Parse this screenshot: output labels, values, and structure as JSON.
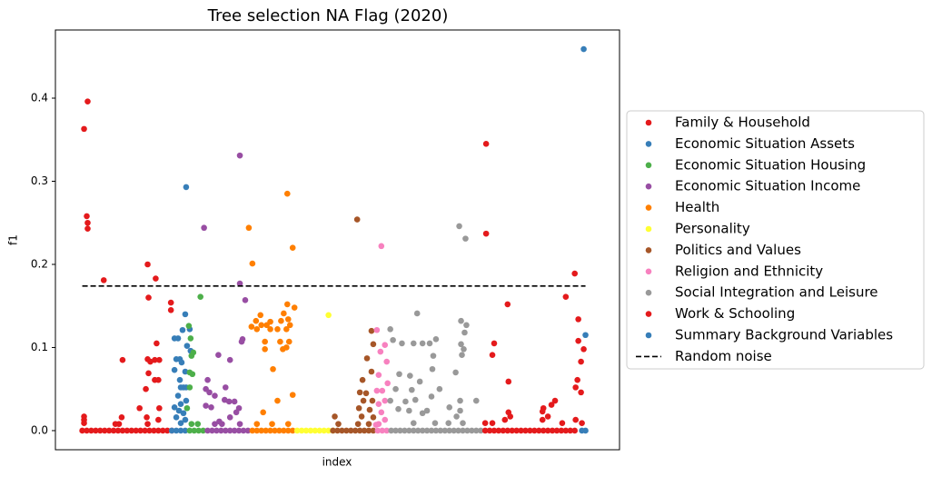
{
  "chart_data": {
    "type": "scatter",
    "title": "Tree selection NA Flag (2020)",
    "x_label": "index",
    "y_label": "f1",
    "xlim": [
      -30,
      600
    ],
    "ylim": [
      -0.023,
      0.482
    ],
    "yticks": [
      {
        "value": 0,
        "label": "0.0"
      },
      0.1,
      0.2,
      0.3,
      0.4
    ],
    "legend": "right",
    "noise": {
      "name": "Random noise",
      "value": 0.174,
      "color": "#000000"
    },
    "series": [
      {
        "name": "Family & Household",
        "color": "#e41a1c",
        "x": [
          2,
          6,
          5,
          6,
          6,
          24,
          73,
          82,
          99,
          99,
          74,
          83,
          45,
          73,
          76,
          81,
          86,
          74,
          81,
          85,
          71,
          64,
          86,
          2,
          2,
          2,
          37,
          44,
          41,
          72,
          73,
          85,
          0,
          5,
          10,
          15,
          20,
          25,
          30,
          35,
          40,
          45,
          50,
          55,
          60,
          65,
          70,
          75,
          80,
          85,
          90,
          95,
          100
        ],
        "values": [
          0.363,
          0.396,
          0.258,
          0.25,
          0.243,
          0.181,
          0.2,
          0.183,
          0.154,
          0.145,
          0.16,
          0.105,
          0.085,
          0.086,
          0.083,
          0.085,
          0.085,
          0.069,
          0.061,
          0.061,
          0.05,
          0.027,
          0.027,
          0.017,
          0.013,
          0.009,
          0.008,
          0.016,
          0.008,
          0.016,
          0.008,
          0.013,
          0,
          0,
          0,
          0,
          0,
          0,
          0,
          0,
          0,
          0,
          0,
          0,
          0,
          0,
          0,
          0,
          0,
          0,
          0,
          0,
          0
        ]
      },
      {
        "name": "Economic Situation Assets",
        "color": "#377eb8",
        "x": [
          116,
          115,
          112,
          107,
          103,
          120,
          117,
          121,
          109,
          105,
          111,
          103,
          115,
          109,
          113,
          116,
          110,
          107,
          116,
          110,
          103,
          108,
          113,
          105,
          115,
          110,
          100,
          105,
          110,
          115
        ],
        "values": [
          0.293,
          0.14,
          0.121,
          0.111,
          0.111,
          0.122,
          0.102,
          0.096,
          0.086,
          0.086,
          0.082,
          0.073,
          0.071,
          0.061,
          0.052,
          0.052,
          0.052,
          0.042,
          0.036,
          0.032,
          0.028,
          0.024,
          0.021,
          0.016,
          0.013,
          0.009,
          0,
          0,
          0,
          0
        ]
      },
      {
        "name": "Economic Situation Housing",
        "color": "#4daf4a",
        "x": [
          132,
          119,
          121,
          124,
          122,
          120,
          123,
          120,
          117,
          129,
          122,
          120,
          125,
          130,
          135
        ],
        "values": [
          0.161,
          0.126,
          0.111,
          0.094,
          0.09,
          0.07,
          0.068,
          0.052,
          0.027,
          0.008,
          0.008,
          0,
          0,
          0,
          0
        ]
      },
      {
        "name": "Economic Situation Income",
        "color": "#984ea3",
        "x": [
          176,
          136,
          176,
          182,
          179,
          178,
          152,
          165,
          140,
          160,
          138,
          142,
          148,
          159,
          164,
          170,
          175,
          138,
          144,
          172,
          165,
          153,
          148,
          156,
          176,
          140,
          145,
          150,
          155,
          160,
          165,
          170,
          175,
          180,
          185
        ],
        "values": [
          0.331,
          0.244,
          0.177,
          0.157,
          0.11,
          0.107,
          0.091,
          0.085,
          0.061,
          0.052,
          0.05,
          0.046,
          0.042,
          0.037,
          0.035,
          0.035,
          0.027,
          0.03,
          0.028,
          0.022,
          0.016,
          0.011,
          0.008,
          0.008,
          0.008,
          0,
          0,
          0,
          0,
          0,
          0,
          0,
          0,
          0,
          0
        ]
      },
      {
        "name": "Health",
        "color": "#ff7f00",
        "x": [
          229,
          186,
          235,
          190,
          229,
          237,
          225,
          199,
          194,
          222,
          210,
          200,
          189,
          195,
          210,
          218,
          228,
          206,
          230,
          232,
          221,
          204,
          231,
          204,
          224,
          228,
          213,
          235,
          218,
          202,
          195,
          212,
          230,
          190,
          195,
          200,
          205,
          210,
          215,
          220,
          225,
          230,
          235
        ],
        "values": [
          0.285,
          0.244,
          0.22,
          0.201,
          0.152,
          0.148,
          0.141,
          0.139,
          0.132,
          0.132,
          0.131,
          0.127,
          0.125,
          0.122,
          0.122,
          0.122,
          0.122,
          0.127,
          0.134,
          0.127,
          0.107,
          0.107,
          0.107,
          0.098,
          0.098,
          0.1,
          0.074,
          0.043,
          0.036,
          0.022,
          0.008,
          0.008,
          0.008,
          0,
          0,
          0,
          0,
          0,
          0,
          0,
          0,
          0,
          0
        ]
      },
      {
        "name": "Personality",
        "color": "#ffff33",
        "x": [
          275,
          240,
          245,
          250,
          255,
          260,
          265,
          270,
          275,
          280
        ],
        "values": [
          0.139,
          0,
          0,
          0,
          0,
          0,
          0,
          0,
          0,
          0
        ]
      },
      {
        "name": "Politics and Values",
        "color": "#a65628",
        "x": [
          307,
          323,
          325,
          318,
          323,
          313,
          310,
          317,
          314,
          324,
          309,
          321,
          282,
          312,
          325,
          286,
          308,
          320,
          280,
          285,
          290,
          295,
          300,
          305,
          310,
          315,
          320,
          325
        ],
        "values": [
          0.254,
          0.12,
          0.104,
          0.087,
          0.071,
          0.061,
          0.046,
          0.045,
          0.036,
          0.036,
          0.027,
          0.025,
          0.017,
          0.017,
          0.016,
          0.008,
          0.008,
          0.008,
          0,
          0,
          0,
          0,
          0,
          0,
          0,
          0,
          0,
          0
        ]
      },
      {
        "name": "Religion and Ethnicity",
        "color": "#f781bf",
        "x": [
          334,
          329,
          338,
          333,
          340,
          331,
          341,
          329,
          335,
          338,
          331,
          334,
          338,
          331,
          328,
          330,
          335,
          340
        ],
        "values": [
          0.222,
          0.121,
          0.103,
          0.095,
          0.083,
          0.067,
          0.057,
          0.048,
          0.048,
          0.036,
          0.032,
          0.022,
          0.013,
          0.008,
          0.007,
          0,
          0,
          0
        ]
      },
      {
        "name": "Social Integration and Leisure",
        "color": "#999999",
        "x": [
          421,
          428,
          374,
          344,
          423,
          429,
          427,
          347,
          395,
          357,
          370,
          380,
          388,
          423,
          426,
          424,
          392,
          417,
          354,
          366,
          391,
          350,
          377,
          368,
          399,
          344,
          361,
          372,
          390,
          422,
          440,
          353,
          365,
          380,
          385,
          410,
          418,
          422,
          370,
          394,
          409,
          425,
          345,
          350,
          355,
          360,
          365,
          370,
          375,
          380,
          385,
          390,
          395,
          400,
          405,
          410,
          415,
          420,
          425,
          430,
          435,
          440,
          445
        ],
        "values": [
          0.246,
          0.231,
          0.141,
          0.122,
          0.132,
          0.127,
          0.118,
          0.109,
          0.11,
          0.105,
          0.105,
          0.105,
          0.105,
          0.104,
          0.098,
          0.091,
          0.09,
          0.07,
          0.068,
          0.066,
          0.074,
          0.05,
          0.059,
          0.049,
          0.05,
          0.036,
          0.035,
          0.037,
          0.041,
          0.036,
          0.036,
          0.026,
          0.024,
          0.021,
          0.024,
          0.028,
          0.017,
          0.024,
          0.009,
          0.009,
          0.009,
          0.009,
          0,
          0,
          0,
          0,
          0,
          0,
          0,
          0,
          0,
          0,
          0,
          0,
          0,
          0,
          0,
          0,
          0,
          0,
          0,
          0,
          0
        ]
      },
      {
        "name": "Work & Schooling",
        "color": "#e41a1c",
        "x": [
          451,
          451,
          550,
          540,
          554,
          475,
          460,
          554,
          458,
          560,
          557,
          553,
          476,
          551,
          557,
          528,
          524,
          515,
          476,
          514,
          478,
          520,
          514,
          450,
          458,
          472,
          536,
          551,
          558,
          450,
          455,
          460,
          465,
          470,
          475,
          480,
          485,
          490,
          495,
          500,
          505,
          510,
          515,
          520,
          525,
          530,
          535,
          540,
          545,
          550
        ],
        "values": [
          0.345,
          0.237,
          0.189,
          0.161,
          0.134,
          0.152,
          0.105,
          0.108,
          0.091,
          0.098,
          0.083,
          0.061,
          0.059,
          0.052,
          0.046,
          0.036,
          0.031,
          0.027,
          0.022,
          0.023,
          0.017,
          0.017,
          0.013,
          0.009,
          0.009,
          0.013,
          0.009,
          0.013,
          0.009,
          0,
          0,
          0,
          0,
          0,
          0,
          0,
          0,
          0,
          0,
          0,
          0,
          0,
          0,
          0,
          0,
          0,
          0,
          0,
          0,
          0
        ]
      },
      {
        "name": "Summary Background Variables",
        "color": "#377eb8",
        "x": [
          560,
          562,
          562,
          558
        ],
        "values": [
          0.459,
          0.115,
          0,
          0
        ]
      }
    ]
  }
}
